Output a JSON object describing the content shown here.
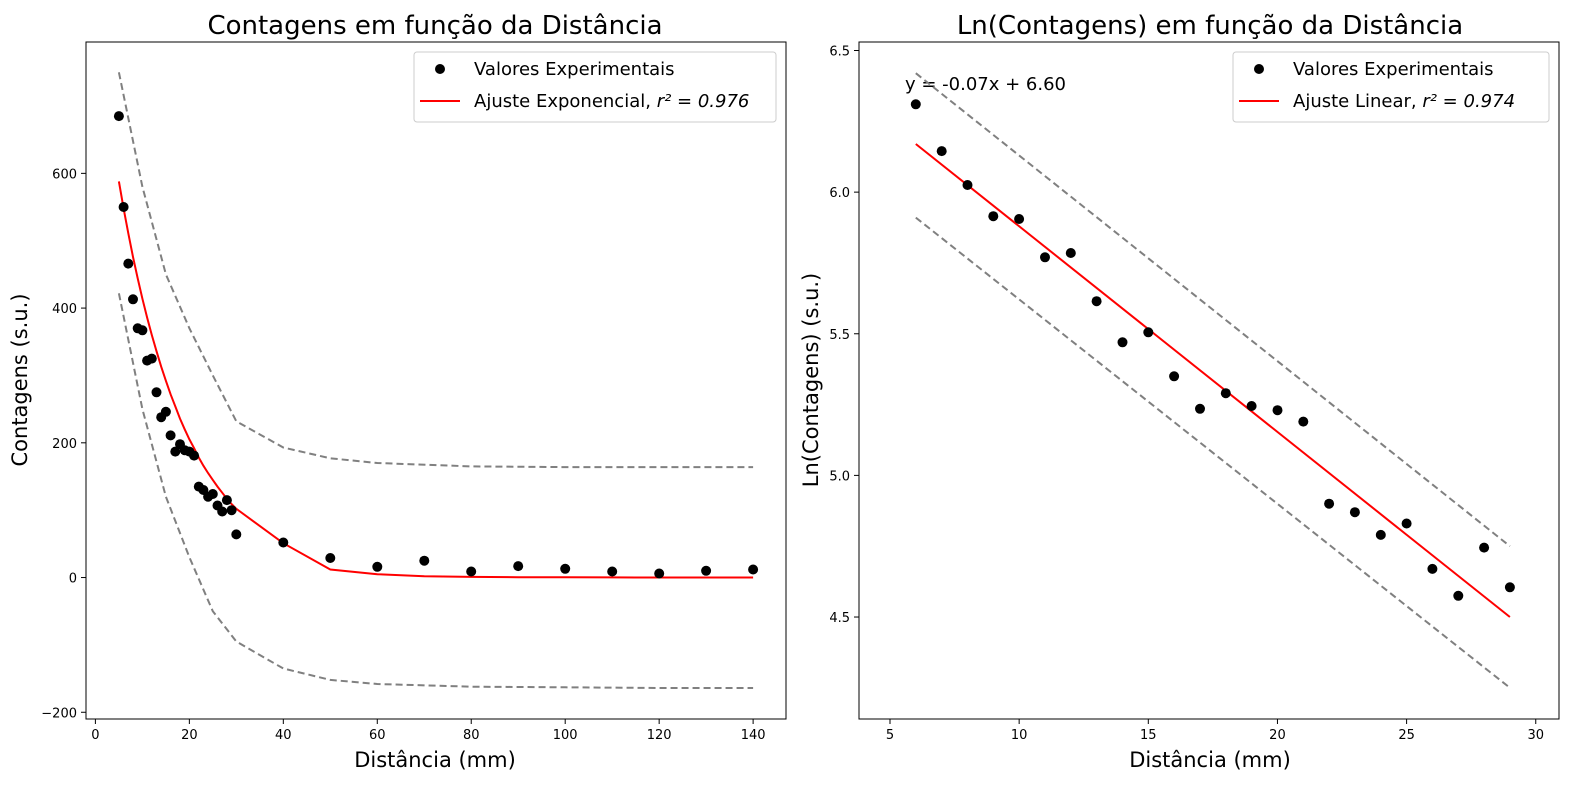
{
  "colors": {
    "points": "#000000",
    "fit": "#ff0000",
    "bands": "#808080",
    "legend_border": "#cccccc"
  },
  "chart_data": [
    {
      "type": "scatter",
      "title": "Contagens em função da Distância",
      "xlabel": "Distância (mm)",
      "ylabel": "Contagens (s.u.)",
      "xlim": [
        -2,
        147
      ],
      "ylim": [
        -210,
        795
      ],
      "xticks": [
        0,
        20,
        40,
        60,
        80,
        100,
        120,
        140
      ],
      "yticks": [
        -200,
        0,
        200,
        400,
        600
      ],
      "legend_position": "top-right",
      "legend": {
        "points_label": "Valores Experimentais",
        "fit_label": "Ajuste Exponencial, ",
        "fit_r2": "r² = 0.976"
      },
      "points": {
        "name": "Valores Experimentais",
        "x": [
          5,
          6,
          7,
          8,
          9,
          10,
          11,
          12,
          13,
          14,
          15,
          16,
          17,
          18,
          19,
          20,
          21,
          22,
          23,
          24,
          25,
          26,
          27,
          28,
          29,
          30,
          40,
          50,
          60,
          70,
          80,
          90,
          100,
          110,
          120,
          130,
          140
        ],
        "y": [
          685,
          550,
          466,
          413,
          370,
          367,
          322,
          325,
          275,
          238,
          246,
          211,
          187,
          198,
          189,
          187,
          181,
          135,
          130,
          120,
          124,
          107,
          98,
          115,
          100,
          64,
          52,
          29,
          16,
          25,
          9,
          17,
          13,
          9,
          6,
          10,
          12
        ]
      },
      "fit": {
        "name": "Ajuste Exponencial",
        "x": [
          5,
          6,
          7,
          8,
          9,
          10,
          11,
          12,
          13,
          14,
          15,
          16,
          17,
          18,
          19,
          20,
          21,
          22,
          23,
          24,
          25,
          26,
          27,
          28,
          29,
          30,
          40,
          50,
          60,
          70,
          80,
          90,
          100,
          110,
          120,
          130,
          140
        ],
        "y": [
          588,
          548,
          511,
          476,
          444,
          414,
          386,
          360,
          336,
          313,
          292,
          272,
          254,
          236,
          220,
          205,
          192,
          178,
          166,
          155,
          145,
          135,
          126,
          117,
          109,
          102,
          51,
          12,
          5,
          2,
          1,
          0.5,
          0.3,
          0.2,
          0.1,
          0.1,
          0
        ]
      },
      "bands": {
        "upper": {
          "x": [
            5,
            10,
            15,
            20,
            25,
            30,
            40,
            50,
            60,
            80,
            100,
            120,
            140
          ],
          "y": [
            750,
            580,
            450,
            370,
            300,
            232,
            193,
            177,
            170,
            165,
            164,
            164,
            164
          ]
        },
        "lower": {
          "x": [
            5,
            10,
            15,
            20,
            25,
            30,
            40,
            50,
            60,
            80,
            100,
            120,
            140
          ],
          "y": [
            422,
            250,
            120,
            30,
            -50,
            -95,
            -135,
            -152,
            -158,
            -162,
            -163,
            -164,
            -164
          ]
        }
      }
    },
    {
      "type": "scatter",
      "title": "Ln(Contagens) em função da Distância",
      "xlabel": "Distância (mm)",
      "ylabel": "Ln(Contagens) (s.u.)",
      "xlim": [
        3.8,
        30.9
      ],
      "ylim": [
        4.14,
        6.53
      ],
      "xticks": [
        5,
        10,
        15,
        20,
        25,
        30
      ],
      "yticks": [
        4.5,
        5.0,
        5.5,
        6.0,
        6.5
      ],
      "legend_position": "top-right",
      "annotation": "y = -0.07x + 6.60",
      "legend": {
        "points_label": "Valores Experimentais",
        "fit_label": "Ajuste Linear, ",
        "fit_r2": "r² = 0.974"
      },
      "points": {
        "name": "Valores Experimentais",
        "x": [
          6,
          7,
          8,
          9,
          10,
          11,
          12,
          13,
          14,
          15,
          16,
          17,
          18,
          19,
          20,
          21,
          22,
          23,
          24,
          25,
          26,
          27,
          28,
          29
        ],
        "y": [
          6.31,
          6.145,
          6.025,
          5.915,
          5.905,
          5.77,
          5.785,
          5.615,
          5.47,
          5.505,
          5.35,
          5.235,
          5.29,
          5.245,
          5.23,
          5.19,
          4.9,
          4.87,
          4.79,
          4.83,
          4.67,
          4.575,
          4.745,
          4.605
        ]
      },
      "fit": {
        "name": "Ajuste Linear",
        "x": [
          6,
          29
        ],
        "y": [
          6.17,
          4.5
        ]
      },
      "bands": {
        "upper": {
          "x": [
            6,
            29
          ],
          "y": [
            6.42,
            4.75
          ]
        },
        "lower": {
          "x": [
            6,
            29
          ],
          "y": [
            5.91,
            4.25
          ]
        }
      }
    }
  ]
}
